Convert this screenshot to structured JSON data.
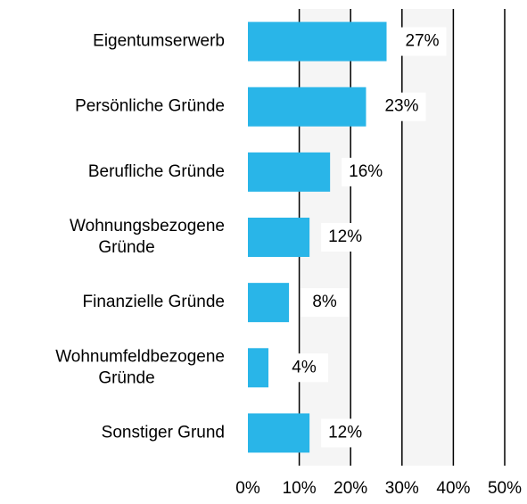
{
  "chart_data": {
    "type": "barh",
    "categories": [
      "Eigentumserwerb",
      "Persönliche Gründe",
      "Berufliche Gründe",
      "Wohnungsbezogene Gründe",
      "Finanzielle Gründe",
      "Wohnumfeldbezogene Gründe",
      "Sonstiger Grund"
    ],
    "values": [
      27,
      23,
      16,
      12,
      8,
      4,
      12
    ],
    "value_labels": [
      "27%",
      "23%",
      "16%",
      "12%",
      "8%",
      "4%",
      "12%"
    ],
    "color": "#29b5e8",
    "xlim": [
      0,
      50
    ],
    "xticks": [
      {
        "value": 0,
        "label": "0%"
      },
      {
        "value": 10,
        "label": "10%"
      },
      {
        "value": 20,
        "label": "20%"
      },
      {
        "value": 30,
        "label": "30%"
      },
      {
        "value": 40,
        "label": "40%"
      },
      {
        "value": 50,
        "label": "50%"
      }
    ],
    "grid": true
  }
}
